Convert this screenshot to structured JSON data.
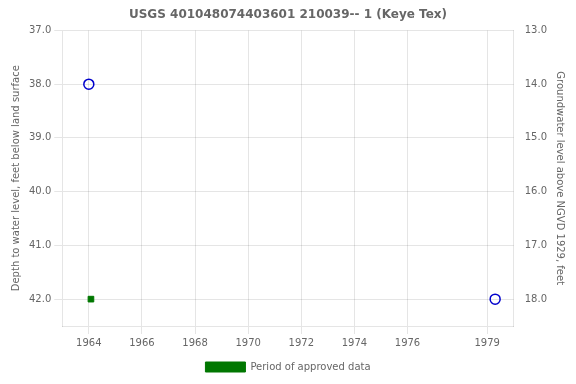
{
  "chart_data": {
    "type": "scatter",
    "title": "USGS 401048074403601 210039-- 1 (Keye Tex)",
    "ylabel": "Depth to water level, feet below land surface",
    "y2label": "Groundwater level above NGVD 1929, feet",
    "xlim": [
      1963.0,
      1980.0
    ],
    "xticks": [
      1964,
      1966,
      1968,
      1970,
      1972,
      1974,
      1976,
      1979
    ],
    "ylim": [
      42.5,
      37.0
    ],
    "yticks": [
      {
        "value": 37.0,
        "label": "37.0"
      },
      {
        "value": 38.0,
        "label": "38.0"
      },
      {
        "value": 39.0,
        "label": "39.0"
      },
      {
        "value": 40.0,
        "label": "40.0"
      },
      {
        "value": 41.0,
        "label": "41.0"
      },
      {
        "value": 42.0,
        "label": "42.0"
      }
    ],
    "y2lim": [
      18.5,
      13.0
    ],
    "y2ticks": [
      {
        "value": 18.0,
        "label": "18.0"
      },
      {
        "value": 17.0,
        "label": "17.0"
      },
      {
        "value": 16.0,
        "label": "16.0"
      },
      {
        "value": 15.0,
        "label": "15.0"
      },
      {
        "value": 14.0,
        "label": "14.0"
      },
      {
        "value": 13.0,
        "label": "13.0"
      }
    ],
    "grid": true,
    "legend": "bottom",
    "series": [
      {
        "color": "#0000cc",
        "marker": "open_circle",
        "x": [
          1964.0,
          1979.3
        ],
        "values": [
          38.0,
          42.0
        ]
      },
      {
        "name": "Period of approved data",
        "color": "#007700",
        "marker": "square",
        "x": [
          1964.08
        ],
        "values": [
          42.0
        ]
      }
    ]
  }
}
